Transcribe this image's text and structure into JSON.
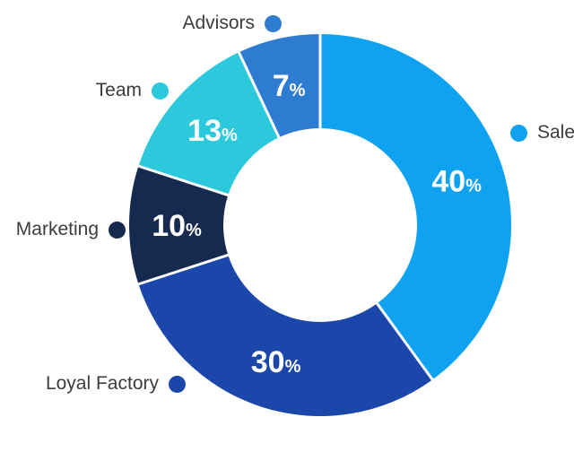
{
  "chart_data": {
    "type": "pie",
    "subtype": "donut",
    "categories": [
      "Sale",
      "Loyal Factory",
      "Marketing",
      "Team",
      "Advisors"
    ],
    "values": [
      40,
      30,
      10,
      13,
      7
    ],
    "unit": "%",
    "colors": [
      "#0ea2f0",
      "#1c47aa",
      "#16294e",
      "#2cc9dd",
      "#2e7cd1"
    ],
    "start_angle_deg": 0,
    "direction": "clockwise",
    "inner_radius_ratio": 0.51,
    "legend_position": "callouts-around-chart",
    "label_style": "white-bold-percent-inside-ring"
  }
}
